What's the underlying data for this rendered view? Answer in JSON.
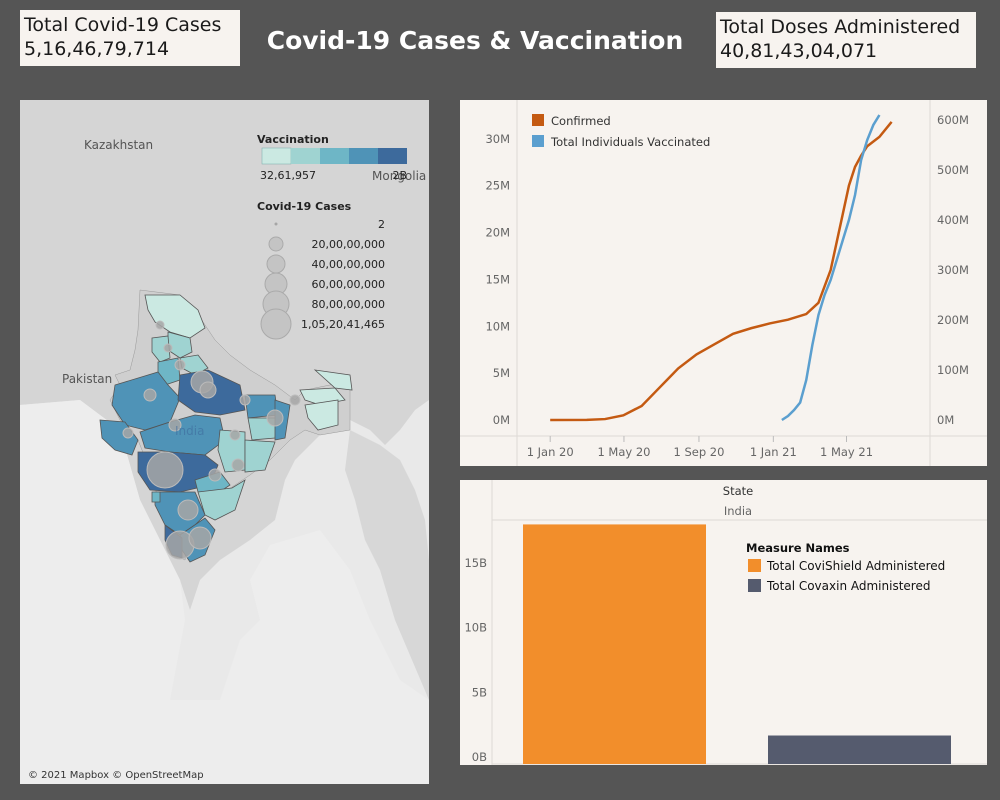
{
  "title": "Covid-19 Cases & Vaccination",
  "kpis": {
    "cases": {
      "label": "Total Covid-19 Cases",
      "value": "5,16,46,79,714"
    },
    "doses": {
      "label": "Total Doses Administered",
      "value": "40,81,43,04,071"
    }
  },
  "map": {
    "countries": [
      "Kazakhstan",
      "Mongolia",
      "Pakistan",
      "India"
    ],
    "attribution": "© 2021 Mapbox © OpenStreetMap",
    "vaccination_legend": {
      "title": "Vaccination",
      "min": "32,61,957",
      "max": "2B",
      "colors": [
        "#cbe9e2",
        "#9fd3d1",
        "#6eb6c6",
        "#4f93b7",
        "#3d6a9c"
      ]
    },
    "cases_legend": {
      "title": "Covid-19 Cases",
      "items": [
        "2",
        "20,00,00,000",
        "40,00,00,000",
        "60,00,00,000",
        "80,00,00,000",
        "1,05,20,41,465"
      ]
    }
  },
  "chart_data": [
    {
      "type": "line",
      "title": "",
      "legend": {
        "position": "top-left"
      },
      "x_ticks": [
        "1 Jan 20",
        "1 May 20",
        "1 Sep 20",
        "1 Jan 21",
        "1 May 21"
      ],
      "left_axis": {
        "ticks": [
          "0M",
          "5M",
          "10M",
          "15M",
          "20M",
          "25M",
          "30M"
        ],
        "range": [
          0,
          32000000
        ]
      },
      "right_axis": {
        "ticks": [
          "0M",
          "100M",
          "200M",
          "300M",
          "400M",
          "500M",
          "600M"
        ],
        "range": [
          0,
          600000000
        ]
      },
      "x_range_days": [
        -20,
        600
      ],
      "series": [
        {
          "name": "Confirmed",
          "color": "#c45a12",
          "axis": "left",
          "x_days": [
            0,
            60,
            90,
            120,
            150,
            180,
            210,
            240,
            270,
            300,
            330,
            360,
            390,
            420,
            440,
            460,
            470,
            480,
            490,
            500,
            510,
            520,
            540,
            560
          ],
          "values": [
            0,
            10000,
            100000,
            500000,
            1500000,
            3500000,
            5500000,
            7000000,
            8100000,
            9200000,
            9800000,
            10300000,
            10700000,
            11300000,
            12500000,
            16000000,
            19000000,
            22000000,
            25000000,
            27000000,
            28200000,
            29200000,
            30200000,
            31800000
          ]
        },
        {
          "name": "Total Individuals Vaccinated",
          "color": "#5b9fcf",
          "axis": "right",
          "x_days": [
            380,
            390,
            400,
            410,
            420,
            430,
            440,
            450,
            460,
            470,
            480,
            490,
            500,
            510,
            520,
            530,
            540
          ],
          "values": [
            0,
            8000000,
            20000000,
            35000000,
            80000000,
            150000000,
            210000000,
            250000000,
            280000000,
            320000000,
            360000000,
            400000000,
            450000000,
            520000000,
            560000000,
            590000000,
            610000000
          ]
        }
      ]
    },
    {
      "type": "bar",
      "header": "State",
      "group": "India",
      "legend_title": "Measure Names",
      "categories": [
        "Total CoviShield Administered",
        "Total Covaxin Administered"
      ],
      "values": [
        18500000000,
        2200000000
      ],
      "colors": [
        "#f28e2b",
        "#555b6e"
      ],
      "y_ticks": [
        "0B",
        "5B",
        "10B",
        "15B"
      ],
      "ylim": [
        0,
        20000000000
      ]
    }
  ]
}
